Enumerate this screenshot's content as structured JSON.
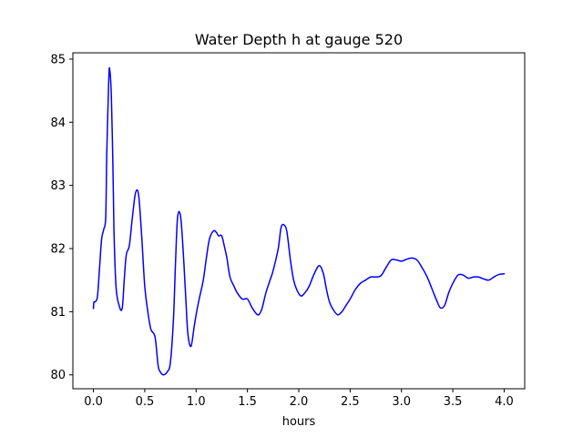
{
  "chart_data": {
    "type": "line",
    "title": "Water Depth h at gauge 520",
    "xlabel": "hours",
    "ylabel": "",
    "xlim": [
      -0.2,
      4.2
    ],
    "ylim": [
      79.78,
      85.1
    ],
    "xticks": [
      0.0,
      0.5,
      1.0,
      1.5,
      2.0,
      2.5,
      3.0,
      3.5,
      4.0
    ],
    "xtick_labels": [
      "0.0",
      "0.5",
      "1.0",
      "1.5",
      "2.0",
      "2.5",
      "3.0",
      "3.5",
      "4.0"
    ],
    "yticks": [
      80,
      81,
      82,
      83,
      84,
      85
    ],
    "ytick_labels": [
      "80",
      "81",
      "82",
      "83",
      "84",
      "85"
    ],
    "grid": false,
    "series": [
      {
        "color": "#0000ff",
        "x": [
          0.0,
          0.005,
          0.02,
          0.04,
          0.06,
          0.08,
          0.1,
          0.12,
          0.13,
          0.15,
          0.16,
          0.175,
          0.19,
          0.2,
          0.22,
          0.25,
          0.28,
          0.3,
          0.32,
          0.35,
          0.38,
          0.41,
          0.44,
          0.47,
          0.5,
          0.53,
          0.56,
          0.6,
          0.63,
          0.65,
          0.68,
          0.72,
          0.75,
          0.78,
          0.8,
          0.82,
          0.85,
          0.88,
          0.9,
          0.92,
          0.95,
          0.98,
          1.0,
          1.03,
          1.07,
          1.1,
          1.13,
          1.17,
          1.2,
          1.22,
          1.25,
          1.28,
          1.3,
          1.33,
          1.37,
          1.4,
          1.45,
          1.5,
          1.55,
          1.6,
          1.63,
          1.65,
          1.68,
          1.72,
          1.75,
          1.8,
          1.83,
          1.87,
          1.89,
          1.92,
          1.95,
          1.98,
          2.02,
          2.06,
          2.1,
          2.15,
          2.2,
          2.24,
          2.27,
          2.3,
          2.34,
          2.38,
          2.42,
          2.46,
          2.5,
          2.55,
          2.6,
          2.65,
          2.7,
          2.75,
          2.8,
          2.85,
          2.9,
          2.95,
          3.0,
          3.05,
          3.1,
          3.15,
          3.2,
          3.25,
          3.3,
          3.35,
          3.38,
          3.42,
          3.46,
          3.5,
          3.55,
          3.6,
          3.65,
          3.7,
          3.75,
          3.8,
          3.85,
          3.9,
          3.95,
          4.0
        ],
        "y": [
          81.05,
          81.15,
          81.16,
          81.25,
          81.7,
          82.15,
          82.3,
          82.5,
          83.5,
          84.7,
          84.82,
          84.4,
          83.3,
          82.3,
          81.4,
          81.1,
          81.05,
          81.5,
          81.9,
          82.05,
          82.5,
          82.88,
          82.85,
          82.2,
          81.4,
          81.0,
          80.72,
          80.6,
          80.15,
          80.05,
          80.0,
          80.05,
          80.2,
          80.9,
          81.8,
          82.5,
          82.5,
          81.8,
          81.2,
          80.65,
          80.45,
          80.75,
          80.95,
          81.2,
          81.5,
          81.85,
          82.15,
          82.28,
          82.25,
          82.2,
          82.2,
          82.0,
          81.85,
          81.55,
          81.4,
          81.3,
          81.2,
          81.2,
          81.05,
          80.95,
          81.0,
          81.1,
          81.3,
          81.5,
          81.65,
          82.0,
          82.35,
          82.35,
          82.2,
          81.8,
          81.5,
          81.35,
          81.25,
          81.3,
          81.4,
          81.6,
          81.73,
          81.6,
          81.35,
          81.15,
          81.02,
          80.95,
          81.0,
          81.1,
          81.2,
          81.35,
          81.45,
          81.5,
          81.55,
          81.55,
          81.57,
          81.7,
          81.82,
          81.82,
          81.8,
          81.83,
          81.85,
          81.82,
          81.7,
          81.55,
          81.35,
          81.15,
          81.06,
          81.1,
          81.3,
          81.45,
          81.58,
          81.58,
          81.53,
          81.55,
          81.55,
          81.52,
          81.5,
          81.55,
          81.59,
          81.6
        ]
      }
    ]
  }
}
